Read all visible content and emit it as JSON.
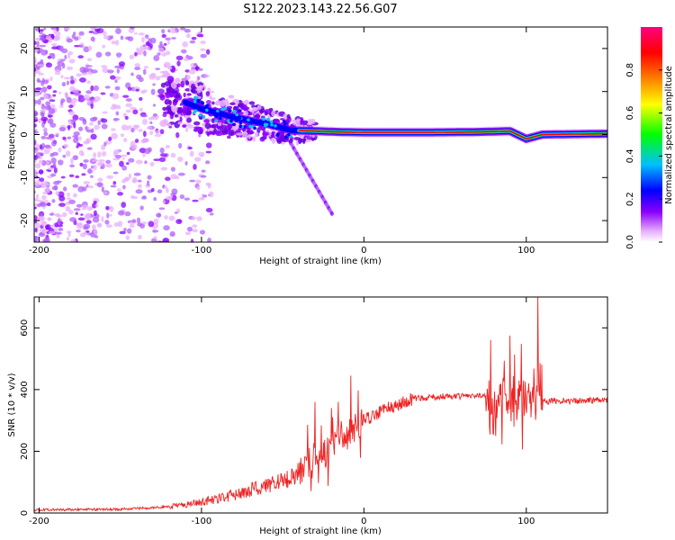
{
  "figure_title": "S122.2023.143.22.56.G07",
  "chart_data": [
    {
      "type": "heatmap",
      "xlabel": "Height of straight line (km)",
      "ylabel": "Frequency (Hz)",
      "xlim": [
        -203,
        150
      ],
      "ylim": [
        -25,
        25
      ],
      "x_ticks": [
        -200,
        -100,
        0,
        100
      ],
      "y_ticks": [
        -20,
        -10,
        0,
        10,
        20
      ],
      "colorbar": {
        "label": "Normalized spectral amplitude",
        "range": [
          0,
          1
        ],
        "ticks": [
          0.0,
          0.2,
          0.4,
          0.6,
          0.8
        ],
        "colors": [
          "#ffffff",
          "#e8b0ff",
          "#8a00ff",
          "#0000ff",
          "#00c0ff",
          "#00ff00",
          "#ffff00",
          "#ff7f00",
          "#ff0000",
          "#ff0080"
        ]
      },
      "track": [
        {
          "x": -120,
          "y": 9
        },
        {
          "x": -100,
          "y": 6
        },
        {
          "x": -80,
          "y": 4
        },
        {
          "x": -60,
          "y": 2.5
        },
        {
          "x": -45,
          "y": 1
        },
        {
          "x": -30,
          "y": 0.8
        },
        {
          "x": -15,
          "y": 0.6
        },
        {
          "x": 0,
          "y": 0.5
        },
        {
          "x": 40,
          "y": 0.5
        },
        {
          "x": 70,
          "y": 0.6
        },
        {
          "x": 90,
          "y": 0.8
        },
        {
          "x": 100,
          "y": -1
        },
        {
          "x": 110,
          "y": 0
        },
        {
          "x": 150,
          "y": 0.2
        }
      ],
      "grid": false
    },
    {
      "type": "line",
      "xlabel": "Height of straight line (km)",
      "ylabel": "SNR (10 * v/v)",
      "xlim": [
        -203,
        150
      ],
      "ylim": [
        0,
        700
      ],
      "x_ticks": [
        -200,
        -100,
        0,
        100
      ],
      "y_ticks": [
        0,
        200,
        400,
        600
      ],
      "line_color": "#ee2222",
      "envelope": [
        {
          "x": -203,
          "y": 10
        },
        {
          "x": -150,
          "y": 12
        },
        {
          "x": -120,
          "y": 20
        },
        {
          "x": -100,
          "y": 35
        },
        {
          "x": -80,
          "y": 60
        },
        {
          "x": -60,
          "y": 90
        },
        {
          "x": -45,
          "y": 110
        },
        {
          "x": -35,
          "y": 160
        },
        {
          "x": -25,
          "y": 200
        },
        {
          "x": -15,
          "y": 250
        },
        {
          "x": 0,
          "y": 300
        },
        {
          "x": 15,
          "y": 340
        },
        {
          "x": 30,
          "y": 370
        },
        {
          "x": 50,
          "y": 378
        },
        {
          "x": 70,
          "y": 378
        },
        {
          "x": 90,
          "y": 370
        },
        {
          "x": 110,
          "y": 362
        },
        {
          "x": 150,
          "y": 365
        }
      ],
      "spikes": [
        {
          "x": -30,
          "y": 360
        },
        {
          "x": -20,
          "y": 340
        },
        {
          "x": -8,
          "y": 445
        },
        {
          "x": 78,
          "y": 560
        },
        {
          "x": 90,
          "y": 575
        },
        {
          "x": 97,
          "y": 548
        },
        {
          "x": 107,
          "y": 700
        }
      ],
      "grid": false
    }
  ]
}
